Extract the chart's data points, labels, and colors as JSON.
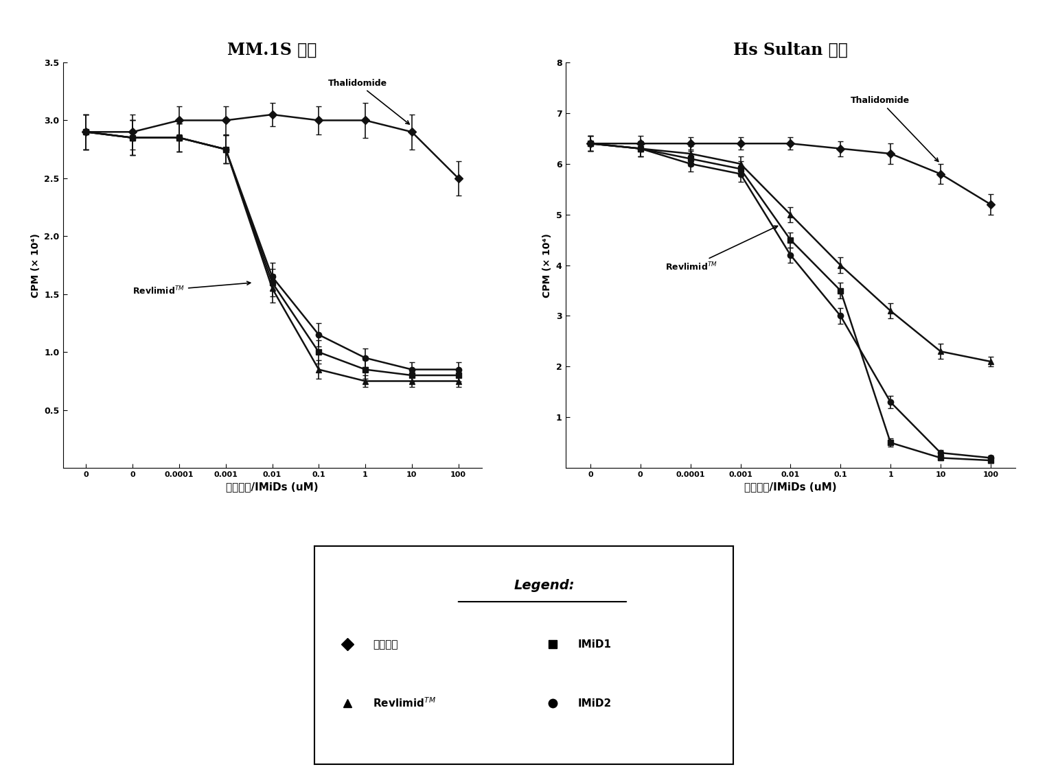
{
  "title_left": "MM.1S 细胞",
  "title_right": "Hs Sultan 细胞",
  "xlabel": "沙利度胺/IMiDs (uM)",
  "ylabel": "CPM (× 10⁴)",
  "mm1s": {
    "thalidomide": {
      "x": [
        0,
        1,
        2,
        3,
        4,
        5,
        6,
        7,
        8
      ],
      "y": [
        2.9,
        2.9,
        3.0,
        3.0,
        3.05,
        3.0,
        3.0,
        2.9,
        2.5
      ],
      "yerr": [
        0.15,
        0.15,
        0.12,
        0.12,
        0.1,
        0.12,
        0.15,
        0.15,
        0.15
      ]
    },
    "revlimid": {
      "x": [
        0,
        1,
        2,
        3,
        4,
        5,
        6,
        7,
        8
      ],
      "y": [
        2.9,
        2.85,
        2.85,
        2.75,
        1.55,
        0.85,
        0.75,
        0.75,
        0.75
      ],
      "yerr": [
        0.15,
        0.15,
        0.12,
        0.12,
        0.12,
        0.08,
        0.05,
        0.05,
        0.05
      ]
    },
    "imid1": {
      "x": [
        0,
        1,
        2,
        3,
        4,
        5,
        6,
        7,
        8
      ],
      "y": [
        2.9,
        2.85,
        2.85,
        2.75,
        1.6,
        1.0,
        0.85,
        0.8,
        0.8
      ],
      "yerr": [
        0.15,
        0.15,
        0.12,
        0.12,
        0.12,
        0.1,
        0.08,
        0.05,
        0.05
      ]
    },
    "imid2": {
      "x": [
        0,
        1,
        2,
        3,
        4,
        5,
        6,
        7,
        8
      ],
      "y": [
        2.9,
        2.85,
        2.85,
        2.75,
        1.65,
        1.15,
        0.95,
        0.85,
        0.85
      ],
      "yerr": [
        0.15,
        0.15,
        0.12,
        0.12,
        0.12,
        0.1,
        0.08,
        0.06,
        0.06
      ]
    }
  },
  "hssultan": {
    "thalidomide": {
      "x": [
        0,
        1,
        2,
        3,
        4,
        5,
        6,
        7,
        8
      ],
      "y": [
        6.4,
        6.4,
        6.4,
        6.4,
        6.4,
        6.3,
        6.2,
        5.8,
        5.2
      ],
      "yerr": [
        0.15,
        0.15,
        0.12,
        0.12,
        0.12,
        0.15,
        0.2,
        0.2,
        0.2
      ]
    },
    "revlimid": {
      "x": [
        0,
        1,
        2,
        3,
        4,
        5,
        6,
        7,
        8
      ],
      "y": [
        6.4,
        6.3,
        6.2,
        6.0,
        5.0,
        4.0,
        3.1,
        2.3,
        2.1
      ],
      "yerr": [
        0.15,
        0.15,
        0.15,
        0.15,
        0.15,
        0.15,
        0.15,
        0.15,
        0.1
      ]
    },
    "imid1": {
      "x": [
        0,
        1,
        2,
        3,
        4,
        5,
        6,
        7,
        8
      ],
      "y": [
        6.4,
        6.3,
        6.1,
        5.9,
        4.5,
        3.5,
        0.5,
        0.2,
        0.15
      ],
      "yerr": [
        0.15,
        0.15,
        0.15,
        0.15,
        0.15,
        0.15,
        0.08,
        0.05,
        0.05
      ]
    },
    "imid2": {
      "x": [
        0,
        1,
        2,
        3,
        4,
        5,
        6,
        7,
        8
      ],
      "y": [
        6.4,
        6.3,
        6.0,
        5.8,
        4.2,
        3.0,
        1.3,
        0.3,
        0.2
      ],
      "yerr": [
        0.15,
        0.15,
        0.15,
        0.15,
        0.15,
        0.15,
        0.12,
        0.06,
        0.05
      ]
    }
  },
  "markers": {
    "thalidomide": "D",
    "revlimid": "^",
    "imid1": "s",
    "imid2": "o"
  },
  "background_color": "#ffffff",
  "mm1s_yticks": [
    0.5,
    1.0,
    1.5,
    2.0,
    2.5,
    3.0,
    3.5
  ],
  "hssultan_yticks": [
    1,
    2,
    3,
    4,
    5,
    6,
    7,
    8
  ],
  "x_tick_labels": [
    "0",
    "0.0001",
    "0.001",
    "0.01",
    "0.1",
    "1",
    "10",
    "100"
  ]
}
